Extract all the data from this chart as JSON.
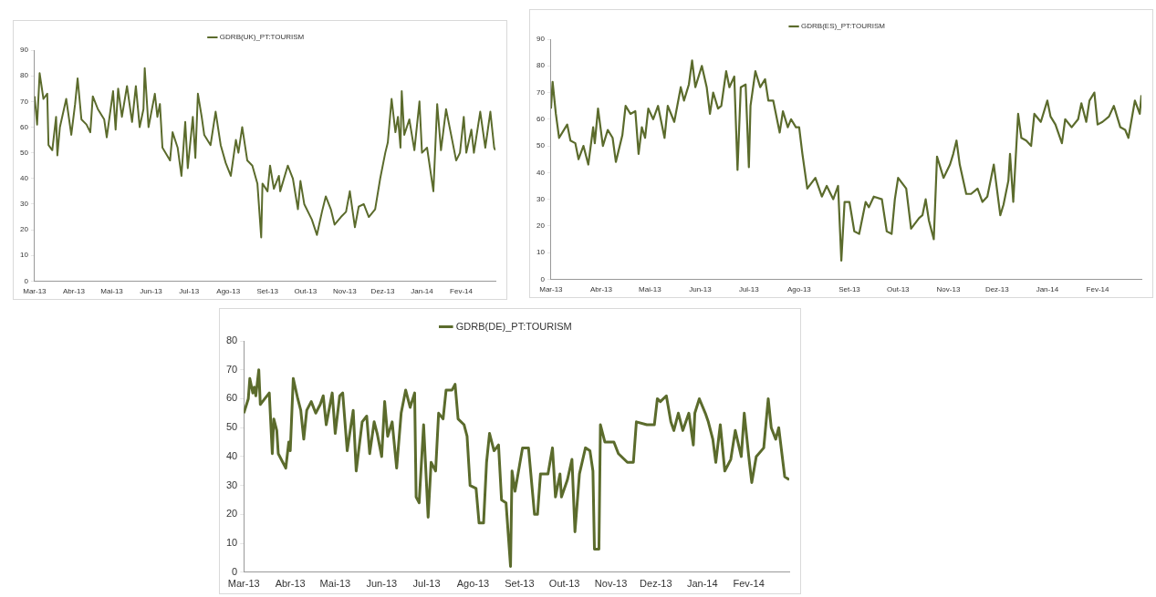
{
  "chart_data": [
    {
      "type": "line",
      "legend": "top",
      "x": [
        "2013-03-01",
        "2013-03-03",
        "2013-03-05",
        "2013-03-08",
        "2013-03-11",
        "2013-03-12",
        "2013-03-15",
        "2013-03-18",
        "2013-03-19",
        "2013-03-21",
        "2013-03-26",
        "2013-03-30",
        "2013-04-02",
        "2013-04-04",
        "2013-04-07",
        "2013-04-11",
        "2013-04-14",
        "2013-04-16",
        "2013-04-20",
        "2013-04-25",
        "2013-04-27",
        "2013-05-02",
        "2013-05-04",
        "2013-05-06",
        "2013-05-09",
        "2013-05-13",
        "2013-05-17",
        "2013-05-20",
        "2013-05-23",
        "2013-05-26",
        "2013-05-27",
        "2013-05-30",
        "2013-06-04",
        "2013-06-06",
        "2013-06-08",
        "2013-06-10",
        "2013-06-16",
        "2013-06-18",
        "2013-06-22",
        "2013-06-25",
        "2013-06-28",
        "2013-06-30",
        "2013-07-04",
        "2013-07-06",
        "2013-07-08",
        "2013-07-11",
        "2013-07-13",
        "2013-07-18",
        "2013-07-22",
        "2013-07-26",
        "2013-07-30",
        "2013-08-03",
        "2013-08-07",
        "2013-08-09",
        "2013-08-12",
        "2013-08-16",
        "2013-08-20",
        "2013-08-24",
        "2013-08-27",
        "2013-08-28",
        "2013-09-01",
        "2013-09-03",
        "2013-09-06",
        "2013-09-10",
        "2013-09-11",
        "2013-09-17",
        "2013-09-21",
        "2013-09-25",
        "2013-09-27",
        "2013-09-30",
        "2013-10-06",
        "2013-10-10",
        "2013-10-14",
        "2013-10-17",
        "2013-10-21",
        "2013-10-24",
        "2013-10-29",
        "2013-11-02",
        "2013-11-05",
        "2013-11-09",
        "2013-11-12",
        "2013-11-16",
        "2013-11-20",
        "2013-11-25",
        "2013-11-29",
        "2013-12-03",
        "2013-12-05",
        "2013-12-08",
        "2013-12-11",
        "2013-12-13",
        "2013-12-15",
        "2013-12-16",
        "2013-12-18",
        "2013-12-22",
        "2013-12-26",
        "2013-12-30",
        "2014-01-01",
        "2014-01-05",
        "2014-01-10",
        "2014-01-13",
        "2014-01-16",
        "2014-01-20",
        "2014-01-24",
        "2014-01-28",
        "2014-01-31",
        "2014-02-03",
        "2014-02-05",
        "2014-02-09",
        "2014-02-11",
        "2014-02-16",
        "2014-02-20",
        "2014-02-24",
        "2014-02-27",
        "2014-02-28"
      ],
      "series": [
        {
          "name": "GDRB(UK)_PT:TOURISM",
          "color": "#5b6b2c",
          "values": [
            72,
            61,
            81,
            71,
            73,
            53,
            51,
            64,
            49,
            60,
            71,
            57,
            69,
            79,
            63,
            61,
            58,
            72,
            67,
            63,
            56,
            74,
            59,
            75,
            64,
            76,
            62,
            76,
            60,
            67,
            83,
            60,
            73,
            64,
            69,
            52,
            47,
            58,
            52,
            41,
            62,
            44,
            64,
            48,
            73,
            64,
            57,
            53,
            66,
            53,
            46,
            41,
            55,
            50,
            60,
            47,
            45,
            38,
            17,
            38,
            35,
            45,
            36,
            41,
            35,
            45,
            40,
            28,
            39,
            30,
            24,
            18,
            27,
            33,
            28,
            22,
            25,
            27,
            35,
            21,
            29,
            30,
            25,
            28,
            40,
            50,
            54,
            71,
            58,
            64,
            52,
            74,
            57,
            63,
            51,
            70,
            50,
            52,
            35,
            69,
            51,
            67,
            57,
            47,
            50,
            64,
            50,
            59,
            50,
            66,
            52,
            66,
            52,
            51
          ]
        }
      ],
      "xlim": [
        "2013-03-01",
        "2014-02-28"
      ],
      "xticks": [
        {
          "value": "2013-03-01",
          "label": "Mar-13"
        },
        {
          "value": "2013-04-01",
          "label": "Abr-13"
        },
        {
          "value": "2013-05-01",
          "label": "Mai-13"
        },
        {
          "value": "2013-06-01",
          "label": "Jun-13"
        },
        {
          "value": "2013-07-01",
          "label": "Jul-13"
        },
        {
          "value": "2013-08-01",
          "label": "Ago-13"
        },
        {
          "value": "2013-09-01",
          "label": "Set-13"
        },
        {
          "value": "2013-10-01",
          "label": "Out-13"
        },
        {
          "value": "2013-11-01",
          "label": "Nov-13"
        },
        {
          "value": "2013-12-01",
          "label": "Dez-13"
        },
        {
          "value": "2014-01-01",
          "label": "Jan-14"
        },
        {
          "value": "2014-02-01",
          "label": "Fev-14"
        }
      ],
      "ylim": [
        0,
        90
      ],
      "yticks": [
        0,
        10,
        20,
        30,
        40,
        50,
        60,
        70,
        80,
        90
      ]
    },
    {
      "type": "line",
      "legend": "top",
      "x": [
        "2013-03-01",
        "2013-03-02",
        "2013-03-04",
        "2013-03-06",
        "2013-03-11",
        "2013-03-13",
        "2013-03-16",
        "2013-03-18",
        "2013-03-21",
        "2013-03-24",
        "2013-03-27",
        "2013-03-28",
        "2013-03-30",
        "2013-04-02",
        "2013-04-05",
        "2013-04-08",
        "2013-04-10",
        "2013-04-14",
        "2013-04-16",
        "2013-04-19",
        "2013-04-22",
        "2013-04-24",
        "2013-04-26",
        "2013-04-28",
        "2013-04-30",
        "2013-05-03",
        "2013-05-06",
        "2013-05-10",
        "2013-05-12",
        "2013-05-16",
        "2013-05-20",
        "2013-05-22",
        "2013-05-25",
        "2013-05-27",
        "2013-05-29",
        "2013-06-02",
        "2013-06-05",
        "2013-06-07",
        "2013-06-09",
        "2013-06-12",
        "2013-06-14",
        "2013-06-17",
        "2013-06-19",
        "2013-06-22",
        "2013-06-24",
        "2013-06-26",
        "2013-06-29",
        "2013-07-01",
        "2013-07-02",
        "2013-07-05",
        "2013-07-08",
        "2013-07-11",
        "2013-07-13",
        "2013-07-16",
        "2013-07-20",
        "2013-07-22",
        "2013-07-25",
        "2013-07-27",
        "2013-07-30",
        "2013-08-01",
        "2013-08-03",
        "2013-08-06",
        "2013-08-11",
        "2013-08-15",
        "2013-08-18",
        "2013-08-22",
        "2013-08-25",
        "2013-08-27",
        "2013-08-29",
        "2013-09-01",
        "2013-09-04",
        "2013-09-07",
        "2013-09-11",
        "2013-09-13",
        "2013-09-16",
        "2013-09-21",
        "2013-09-24",
        "2013-09-27",
        "2013-09-29",
        "2013-10-01",
        "2013-10-06",
        "2013-10-09",
        "2013-10-14",
        "2013-10-16",
        "2013-10-18",
        "2013-10-20",
        "2013-10-23",
        "2013-10-25",
        "2013-10-29",
        "2013-11-02",
        "2013-11-04",
        "2013-11-06",
        "2013-11-08",
        "2013-11-12",
        "2013-11-15",
        "2013-11-19",
        "2013-11-22",
        "2013-11-25",
        "2013-11-29",
        "2013-12-03",
        "2013-12-05",
        "2013-12-08",
        "2013-12-09",
        "2013-12-11",
        "2013-12-14",
        "2013-12-16",
        "2013-12-19",
        "2013-12-22",
        "2013-12-24",
        "2013-12-28",
        "2014-01-01",
        "2014-01-03",
        "2014-01-06",
        "2014-01-10",
        "2014-01-12",
        "2014-01-16",
        "2014-01-20",
        "2014-01-22",
        "2014-01-25",
        "2014-01-27",
        "2014-01-30",
        "2014-02-01",
        "2014-02-04",
        "2014-02-08",
        "2014-02-11",
        "2014-02-15",
        "2014-02-18",
        "2014-02-20",
        "2014-02-24",
        "2014-02-27",
        "2014-02-28"
      ],
      "series": [
        {
          "name": "GDRB(ES)_PT:TOURISM",
          "color": "#5b6b2c",
          "values": [
            64,
            74,
            62,
            53,
            58,
            52,
            51,
            45,
            50,
            43,
            57,
            51,
            64,
            50,
            56,
            53,
            44,
            54,
            65,
            62,
            63,
            47,
            57,
            53,
            64,
            60,
            65,
            53,
            65,
            59,
            72,
            67,
            73,
            82,
            72,
            80,
            72,
            62,
            70,
            64,
            65,
            78,
            72,
            76,
            41,
            72,
            73,
            42,
            65,
            78,
            72,
            75,
            67,
            67,
            55,
            63,
            57,
            60,
            57,
            57,
            47,
            34,
            38,
            31,
            35,
            30,
            35,
            7,
            29,
            29,
            18,
            17,
            29,
            27,
            31,
            30,
            18,
            17,
            30,
            38,
            34,
            19,
            23,
            24,
            30,
            22,
            15,
            46,
            38,
            43,
            47,
            52,
            43,
            32,
            32,
            34,
            29,
            31,
            43,
            24,
            28,
            37,
            47,
            29,
            62,
            53,
            52,
            50,
            62,
            59,
            67,
            61,
            58,
            51,
            60,
            57,
            60,
            66,
            59,
            67,
            70,
            58,
            59,
            61,
            65,
            57,
            56,
            53,
            67,
            62,
            69
          ]
        }
      ],
      "xlim": [
        "2013-03-01",
        "2014-02-28"
      ],
      "xticks": [
        {
          "value": "2013-03-01",
          "label": "Mar-13"
        },
        {
          "value": "2013-04-01",
          "label": "Abr-13"
        },
        {
          "value": "2013-05-01",
          "label": "Mai-13"
        },
        {
          "value": "2013-06-01",
          "label": "Jun-13"
        },
        {
          "value": "2013-07-01",
          "label": "Jul-13"
        },
        {
          "value": "2013-08-01",
          "label": "Ago-13"
        },
        {
          "value": "2013-09-01",
          "label": "Set-13"
        },
        {
          "value": "2013-10-01",
          "label": "Out-13"
        },
        {
          "value": "2013-11-01",
          "label": "Nov-13"
        },
        {
          "value": "2013-12-01",
          "label": "Dez-13"
        },
        {
          "value": "2014-01-01",
          "label": "Jan-14"
        },
        {
          "value": "2014-02-01",
          "label": "Fev-14"
        }
      ],
      "ylim": [
        0,
        90
      ],
      "yticks": [
        0,
        10,
        20,
        30,
        40,
        50,
        60,
        70,
        80,
        90
      ]
    },
    {
      "type": "line",
      "legend": "top",
      "x": [
        "2013-03-01",
        "2013-03-04",
        "2013-03-05",
        "2013-03-07",
        "2013-03-08",
        "2013-03-09",
        "2013-03-11",
        "2013-03-12",
        "2013-03-15",
        "2013-03-18",
        "2013-03-20",
        "2013-03-21",
        "2013-03-23",
        "2013-03-24",
        "2013-03-27",
        "2013-03-29",
        "2013-03-31",
        "2013-04-01",
        "2013-04-03",
        "2013-04-06",
        "2013-04-08",
        "2013-04-10",
        "2013-04-12",
        "2013-04-15",
        "2013-04-18",
        "2013-04-21",
        "2013-04-23",
        "2013-04-25",
        "2013-04-29",
        "2013-05-01",
        "2013-05-04",
        "2013-05-06",
        "2013-05-09",
        "2013-05-13",
        "2013-05-15",
        "2013-05-19",
        "2013-05-22",
        "2013-05-24",
        "2013-05-27",
        "2013-05-29",
        "2013-06-01",
        "2013-06-03",
        "2013-06-05",
        "2013-06-08",
        "2013-06-11",
        "2013-06-14",
        "2013-06-17",
        "2013-06-20",
        "2013-06-23",
        "2013-06-24",
        "2013-06-26",
        "2013-06-29",
        "2013-07-02",
        "2013-07-04",
        "2013-07-07",
        "2013-07-09",
        "2013-07-12",
        "2013-07-14",
        "2013-07-18",
        "2013-07-20",
        "2013-07-22",
        "2013-07-26",
        "2013-07-28",
        "2013-07-30",
        "2013-08-03",
        "2013-08-05",
        "2013-08-08",
        "2013-08-10",
        "2013-08-12",
        "2013-08-15",
        "2013-08-18",
        "2013-08-20",
        "2013-08-23",
        "2013-08-26",
        "2013-08-27",
        "2013-08-29",
        "2013-09-01",
        "2013-09-03",
        "2013-09-07",
        "2013-09-11",
        "2013-09-13",
        "2013-09-15",
        "2013-09-20",
        "2013-09-23",
        "2013-09-25",
        "2013-09-28",
        "2013-09-29",
        "2013-10-03",
        "2013-10-06",
        "2013-10-08",
        "2013-10-11",
        "2013-10-15",
        "2013-10-18",
        "2013-10-20",
        "2013-10-21",
        "2013-10-24",
        "2013-10-25",
        "2013-10-28",
        "2013-11-03",
        "2013-11-06",
        "2013-11-12",
        "2013-11-16",
        "2013-11-18",
        "2013-11-25",
        "2013-11-30",
        "2013-12-02",
        "2013-12-04",
        "2013-12-08",
        "2013-12-11",
        "2013-12-13",
        "2013-12-16",
        "2013-12-19",
        "2013-12-23",
        "2013-12-26",
        "2013-12-27",
        "2013-12-30",
        "2014-01-03",
        "2014-01-05",
        "2014-01-08",
        "2014-01-10",
        "2014-01-13",
        "2014-01-16",
        "2014-01-20",
        "2014-01-23",
        "2014-01-27",
        "2014-01-29",
        "2014-02-01",
        "2014-02-03",
        "2014-02-06",
        "2014-02-11",
        "2014-02-14",
        "2014-02-16",
        "2014-02-19",
        "2014-02-21",
        "2014-02-25",
        "2014-02-28"
      ],
      "series": [
        {
          "name": "GDRB(DE)_PT:TOURISM",
          "color": "#5b6b2c",
          "values": [
            55,
            60,
            67,
            62,
            64,
            61,
            70,
            58,
            60,
            62,
            41,
            53,
            49,
            41,
            38,
            36,
            45,
            42,
            67,
            60,
            56,
            46,
            56,
            59,
            55,
            58,
            61,
            51,
            62,
            48,
            61,
            62,
            42,
            56,
            35,
            52,
            54,
            41,
            52,
            48,
            40,
            59,
            47,
            52,
            36,
            55,
            63,
            57,
            62,
            26,
            24,
            51,
            19,
            38,
            35,
            55,
            53,
            63,
            63,
            65,
            53,
            51,
            47,
            30,
            29,
            17,
            17,
            38,
            48,
            42,
            44,
            25,
            24,
            2,
            35,
            28,
            37,
            43,
            43,
            20,
            20,
            34,
            34,
            43,
            26,
            34,
            26,
            32,
            39,
            14,
            34,
            43,
            42,
            35,
            8,
            8,
            51,
            45,
            45,
            41,
            38,
            38,
            52,
            51,
            51,
            60,
            59,
            61,
            52,
            49,
            55,
            49,
            55,
            44,
            55,
            60,
            55,
            52,
            46,
            38,
            51,
            35,
            39,
            49,
            40,
            55,
            40,
            31,
            40,
            43,
            60,
            50,
            46,
            50,
            33,
            32
          ]
        }
      ],
      "xlim": [
        "2013-03-01",
        "2014-02-28"
      ],
      "xticks": [
        {
          "value": "2013-03-01",
          "label": "Mar-13"
        },
        {
          "value": "2013-04-01",
          "label": "Abr-13"
        },
        {
          "value": "2013-05-01",
          "label": "Mai-13"
        },
        {
          "value": "2013-06-01",
          "label": "Jun-13"
        },
        {
          "value": "2013-07-01",
          "label": "Jul-13"
        },
        {
          "value": "2013-08-01",
          "label": "Ago-13"
        },
        {
          "value": "2013-09-01",
          "label": "Set-13"
        },
        {
          "value": "2013-10-01",
          "label": "Out-13"
        },
        {
          "value": "2013-11-01",
          "label": "Nov-13"
        },
        {
          "value": "2013-12-01",
          "label": "Dez-13"
        },
        {
          "value": "2014-01-01",
          "label": "Jan-14"
        },
        {
          "value": "2014-02-01",
          "label": "Fev-14"
        }
      ],
      "ylim": [
        0,
        80
      ],
      "yticks": [
        0,
        10,
        20,
        30,
        40,
        50,
        60,
        70,
        80
      ]
    }
  ]
}
